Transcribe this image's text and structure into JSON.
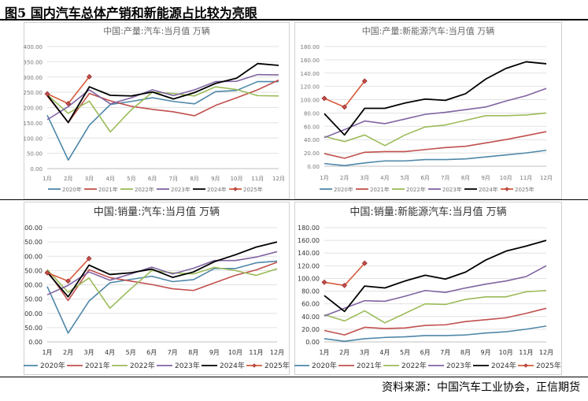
{
  "figure": {
    "title": "图5 国内汽车总体产销和新能源占比较为亮眼",
    "source": "资料来源：中国汽车工业协会，正信期货"
  },
  "chart_data": [
    {
      "type": "line",
      "title": "中国:产量:汽车:当月值 万辆",
      "categories": [
        "1月",
        "2月",
        "3月",
        "4月",
        "5月",
        "6月",
        "7月",
        "8月",
        "9月",
        "10月",
        "11月",
        "12月"
      ],
      "ylim": [
        0,
        400
      ],
      "yticks": [
        "0.00",
        "50.00",
        "100.00",
        "150.00",
        "200.00",
        "250.00",
        "300.00",
        "350.00",
        "400.00"
      ],
      "legend": "bottom",
      "grid": true,
      "series": [
        {
          "name": "2020年",
          "color": "#4e87a8",
          "values": [
            175,
            28,
            142,
            210,
            220,
            232,
            220,
            212,
            252,
            256,
            285,
            285
          ]
        },
        {
          "name": "2021年",
          "color": "#c0504d",
          "values": [
            238,
            151,
            246,
            222,
            204,
            194,
            186,
            173,
            207,
            232,
            258,
            290
          ]
        },
        {
          "name": "2022年",
          "color": "#9bbb59",
          "values": [
            242,
            181,
            221,
            120,
            193,
            250,
            246,
            238,
            268,
            259,
            239,
            238
          ]
        },
        {
          "name": "2023年",
          "color": "#8064a2",
          "values": [
            160,
            203,
            258,
            212,
            232,
            258,
            239,
            258,
            285,
            286,
            308,
            307
          ]
        },
        {
          "name": "2024年",
          "color": "#000000",
          "values": [
            241,
            151,
            268,
            240,
            238,
            251,
            228,
            249,
            279,
            296,
            344,
            338
          ]
        },
        {
          "name": "2025年",
          "color": "#d65b3c",
          "marker": true,
          "values": [
            245,
            213,
            301,
            null,
            null,
            null,
            null,
            null,
            null,
            null,
            null,
            null
          ]
        }
      ]
    },
    {
      "type": "line",
      "title": "中国:产量:新能源汽车:当月值 万辆",
      "categories": [
        "1月",
        "2月",
        "3月",
        "4月",
        "5月",
        "6月",
        "7月",
        "8月",
        "9月",
        "10月",
        "11月",
        "12月"
      ],
      "ylim": [
        0,
        180
      ],
      "yticks": [
        "0.00",
        "20.00",
        "40.00",
        "60.00",
        "80.00",
        "100.00",
        "120.00",
        "140.00",
        "160.00",
        "180.00"
      ],
      "legend": "bottom",
      "grid": true,
      "series": [
        {
          "name": "2020年",
          "color": "#4e87a8",
          "values": [
            4,
            1,
            5,
            8,
            8,
            10,
            10,
            11,
            14,
            17,
            20,
            24
          ]
        },
        {
          "name": "2021年",
          "color": "#c0504d",
          "values": [
            19,
            12,
            21,
            22,
            22,
            25,
            28,
            30,
            35,
            40,
            46,
            52
          ]
        },
        {
          "name": "2022年",
          "color": "#9bbb59",
          "values": [
            45,
            37,
            47,
            31,
            47,
            59,
            62,
            69,
            76,
            76,
            77,
            80
          ]
        },
        {
          "name": "2023年",
          "color": "#8064a2",
          "values": [
            43,
            55,
            68,
            64,
            71,
            78,
            81,
            85,
            89,
            98,
            106,
            117
          ]
        },
        {
          "name": "2024年",
          "color": "#000000",
          "values": [
            79,
            47,
            87,
            87,
            95,
            101,
            99,
            109,
            131,
            147,
            157,
            154
          ]
        },
        {
          "name": "2025年",
          "color": "#d65b3c",
          "marker": true,
          "values": [
            102,
            89,
            128,
            null,
            null,
            null,
            null,
            null,
            null,
            null,
            null,
            null
          ]
        }
      ]
    },
    {
      "type": "line",
      "title": "中国:销量:汽车:当月值 万辆",
      "categories": [
        "1月",
        "2月",
        "3月",
        "4月",
        "5月",
        "6月",
        "7月",
        "8月",
        "9月",
        "10月",
        "11月",
        "12月"
      ],
      "ylim": [
        0,
        400
      ],
      "yticks": [
        "0.00",
        "50.00",
        "100.00",
        "150.00",
        "200.00",
        "250.00",
        "300.00",
        "350.00",
        "400.00"
      ],
      "legend": "bottom",
      "grid": true,
      "series": [
        {
          "name": "2020年",
          "color": "#4e87a8",
          "values": [
            194,
            31,
            143,
            207,
            219,
            230,
            211,
            218,
            257,
            257,
            277,
            283
          ]
        },
        {
          "name": "2021年",
          "color": "#c0504d",
          "values": [
            250,
            145,
            253,
            225,
            213,
            201,
            186,
            180,
            207,
            233,
            252,
            279
          ]
        },
        {
          "name": "2022年",
          "color": "#9bbb59",
          "values": [
            253,
            174,
            224,
            118,
            186,
            250,
            242,
            238,
            261,
            250,
            233,
            256
          ]
        },
        {
          "name": "2023年",
          "color": "#8064a2",
          "values": [
            165,
            198,
            245,
            216,
            238,
            262,
            238,
            258,
            285,
            285,
            297,
            316
          ]
        },
        {
          "name": "2024年",
          "color": "#000000",
          "values": [
            244,
            158,
            269,
            236,
            242,
            255,
            226,
            245,
            281,
            305,
            332,
            350
          ]
        },
        {
          "name": "2025年",
          "color": "#d65b3c",
          "marker": true,
          "values": [
            242,
            213,
            292,
            null,
            null,
            null,
            null,
            null,
            null,
            null,
            null,
            null
          ]
        }
      ]
    },
    {
      "type": "line",
      "title": "中国:销量:新能源汽车:当月值 万辆",
      "categories": [
        "1月",
        "2月",
        "3月",
        "4月",
        "5月",
        "6月",
        "7月",
        "8月",
        "9月",
        "10月",
        "11月",
        "12月"
      ],
      "ylim": [
        0,
        180
      ],
      "yticks": [
        "0.00",
        "20.00",
        "40.00",
        "60.00",
        "80.00",
        "100.00",
        "120.00",
        "140.00",
        "160.00",
        "180.00"
      ],
      "legend": "bottom",
      "grid": true,
      "series": [
        {
          "name": "2020年",
          "color": "#4e87a8",
          "values": [
            5,
            1,
            5,
            7,
            8,
            10,
            10,
            11,
            14,
            16,
            20,
            25
          ]
        },
        {
          "name": "2021年",
          "color": "#c0504d",
          "values": [
            18,
            11,
            23,
            21,
            22,
            26,
            27,
            32,
            35,
            38,
            45,
            53
          ]
        },
        {
          "name": "2022年",
          "color": "#9bbb59",
          "values": [
            43,
            33,
            49,
            30,
            45,
            60,
            59,
            67,
            71,
            71,
            79,
            81
          ]
        },
        {
          "name": "2023年",
          "color": "#8064a2",
          "values": [
            41,
            53,
            65,
            64,
            72,
            81,
            78,
            85,
            91,
            96,
            103,
            120
          ]
        },
        {
          "name": "2024年",
          "color": "#000000",
          "values": [
            73,
            48,
            88,
            85,
            96,
            105,
            99,
            110,
            129,
            143,
            151,
            160
          ]
        },
        {
          "name": "2025年",
          "color": "#d65b3c",
          "marker": true,
          "values": [
            94,
            89,
            124,
            null,
            null,
            null,
            null,
            null,
            null,
            null,
            null,
            null
          ]
        }
      ]
    }
  ]
}
